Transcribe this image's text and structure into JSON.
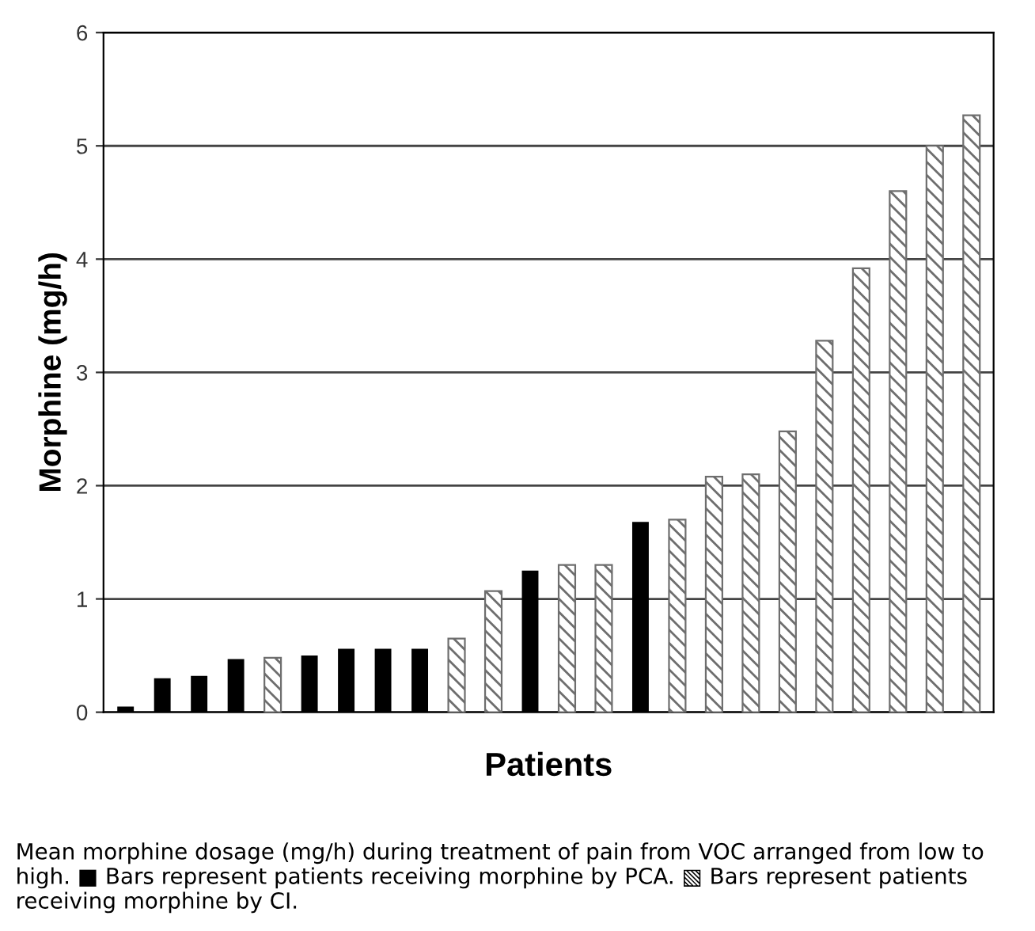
{
  "chart_data": {
    "type": "bar",
    "xlabel": "Patients",
    "ylabel": "Morphine (mg/h)",
    "categories": [
      null,
      null,
      null,
      null,
      null,
      null,
      null,
      null,
      null,
      null,
      null,
      null,
      null,
      null,
      null,
      null,
      null,
      null,
      null,
      null,
      null,
      null,
      null,
      null
    ],
    "series": [
      {
        "color": "#000000",
        "values": [
          0.05,
          0.3,
          0.32,
          0.47,
          null,
          0.5,
          0.56,
          0.56,
          0.56,
          null,
          null,
          1.25,
          null,
          null,
          1.68,
          null,
          null,
          null,
          null,
          null,
          null,
          null,
          null,
          null
        ]
      },
      {
        "color": "#6e6e6e",
        "values": [
          null,
          null,
          null,
          null,
          0.48,
          null,
          null,
          null,
          null,
          0.65,
          1.07,
          null,
          1.3,
          1.3,
          null,
          1.7,
          2.08,
          2.1,
          2.48,
          3.28,
          3.92,
          4.6,
          5.0,
          5.27
        ]
      }
    ],
    "ylim": [
      0,
      6
    ],
    "yticks": [
      0,
      1,
      2,
      3,
      4,
      5,
      6
    ],
    "grid": "y",
    "tick_labels": "y",
    "annotations": [
      "Mean morphine dosage (mg/h) during treatment of pain from VOC arranged from low to high. ■ Bars represent patients receiving morphine by PCA. ▧ Bars represent patients receiving morphine by CI."
    ]
  }
}
